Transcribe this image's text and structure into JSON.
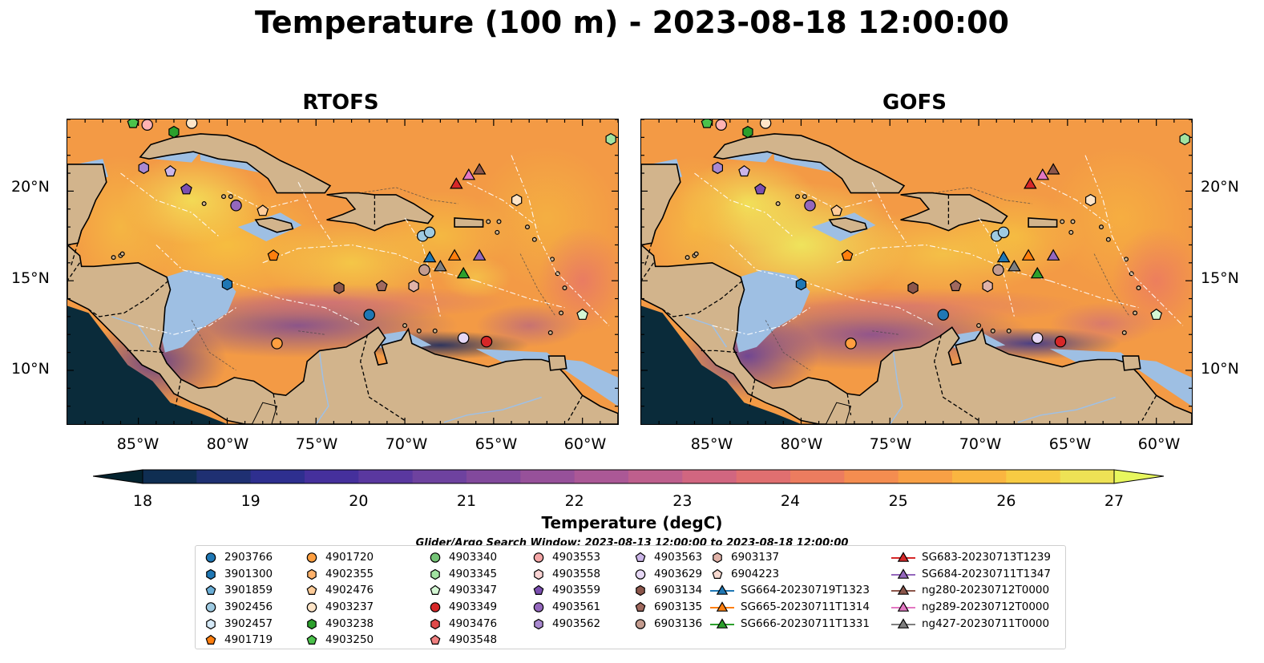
{
  "title": "Temperature (100 m) - 2023-08-18 12:00:00",
  "panels": [
    {
      "title": "RTOFS"
    },
    {
      "title": "GOFS"
    }
  ],
  "lat_labels": [
    "20°N",
    "15°N",
    "10°N"
  ],
  "lon_labels": [
    "85°W",
    "80°W",
    "75°W",
    "70°W",
    "65°W",
    "60°W"
  ],
  "colorbar": {
    "label": "Temperature (degC)",
    "ticks": [
      "18",
      "19",
      "20",
      "21",
      "22",
      "23",
      "24",
      "25",
      "26",
      "27"
    ],
    "range": [
      18,
      27
    ],
    "colormap": "thermal",
    "extend": "both"
  },
  "search_window": "Glider/Argo Search Window: 2023-08-13 12:00:00 to 2023-08-18 12:00:00",
  "legend_columns": [
    [
      {
        "label": "2903766",
        "marker": "circle",
        "color": "#1f77b4"
      },
      {
        "label": "3901300",
        "marker": "hexagon",
        "color": "#1f77b4"
      },
      {
        "label": "3901859",
        "marker": "pentagon",
        "color": "#6baed6"
      },
      {
        "label": "3902456",
        "marker": "circle",
        "color": "#9ecae1"
      },
      {
        "label": "3902457",
        "marker": "hexagon",
        "color": "#d6eaf8"
      },
      {
        "label": "4901719",
        "marker": "pentagon",
        "color": "#ff7f0e"
      }
    ],
    [
      {
        "label": "4901720",
        "marker": "circle",
        "color": "#ff9f40"
      },
      {
        "label": "4902355",
        "marker": "hexagon",
        "color": "#ffb26b"
      },
      {
        "label": "4902476",
        "marker": "pentagon",
        "color": "#ffcc99"
      },
      {
        "label": "4903237",
        "marker": "circle",
        "color": "#ffe5c8"
      },
      {
        "label": "4903238",
        "marker": "hexagon",
        "color": "#2ca02c"
      },
      {
        "label": "4903250",
        "marker": "pentagon",
        "color": "#4bc24b"
      }
    ],
    [
      {
        "label": "4903340",
        "marker": "circle",
        "color": "#74c476"
      },
      {
        "label": "4903345",
        "marker": "hexagon",
        "color": "#a1e3a1"
      },
      {
        "label": "4903347",
        "marker": "pentagon",
        "color": "#d4f7d4"
      },
      {
        "label": "4903349",
        "marker": "circle",
        "color": "#d62728"
      },
      {
        "label": "4903476",
        "marker": "hexagon",
        "color": "#e04a4a"
      },
      {
        "label": "4903548",
        "marker": "pentagon",
        "color": "#f08080"
      }
    ],
    [
      {
        "label": "4903553",
        "marker": "circle",
        "color": "#f4a6a6"
      },
      {
        "label": "4903558",
        "marker": "hexagon",
        "color": "#fad4d4"
      },
      {
        "label": "4903559",
        "marker": "pentagon",
        "color": "#7b4fb0"
      },
      {
        "label": "4903561",
        "marker": "circle",
        "color": "#9467bd"
      },
      {
        "label": "4903562",
        "marker": "hexagon",
        "color": "#a989d0"
      }
    ],
    [
      {
        "label": "4903563",
        "marker": "pentagon",
        "color": "#cbb5e8"
      },
      {
        "label": "4903629",
        "marker": "circle",
        "color": "#e6d8f5"
      },
      {
        "label": "6903134",
        "marker": "hexagon",
        "color": "#8c564b"
      },
      {
        "label": "6903135",
        "marker": "pentagon",
        "color": "#a0695e"
      },
      {
        "label": "6903136",
        "marker": "circle",
        "color": "#c49c8f"
      }
    ],
    [
      {
        "label": "6903137",
        "marker": "hexagon",
        "color": "#e0b2a8"
      },
      {
        "label": "6904223",
        "marker": "pentagon",
        "color": "#f7d9d0"
      },
      {
        "label": "SG664-20230719T1323",
        "marker": "triangle-line",
        "color": "#1f77b4"
      },
      {
        "label": "SG665-20230711T1314",
        "marker": "triangle-line",
        "color": "#ff7f0e"
      },
      {
        "label": "SG666-20230711T1331",
        "marker": "triangle-line",
        "color": "#2ca02c"
      }
    ],
    [
      {
        "label": "SG683-20230713T1239",
        "marker": "triangle-line",
        "color": "#d62728"
      },
      {
        "label": "SG684-20230711T1347",
        "marker": "triangle-line",
        "color": "#9467bd"
      },
      {
        "label": "ng280-20230712T0000",
        "marker": "triangle-line",
        "color": "#8c564b"
      },
      {
        "label": "ng289-20230712T0000",
        "marker": "triangle-line",
        "color": "#e377c2"
      },
      {
        "label": "ng427-20230711T0000",
        "marker": "triangle-line",
        "color": "#7f7f7f"
      }
    ]
  ],
  "colors": {
    "land": "#d2b48c",
    "shelf": "#9ebfe3",
    "deep_bg": "#f7a040"
  }
}
